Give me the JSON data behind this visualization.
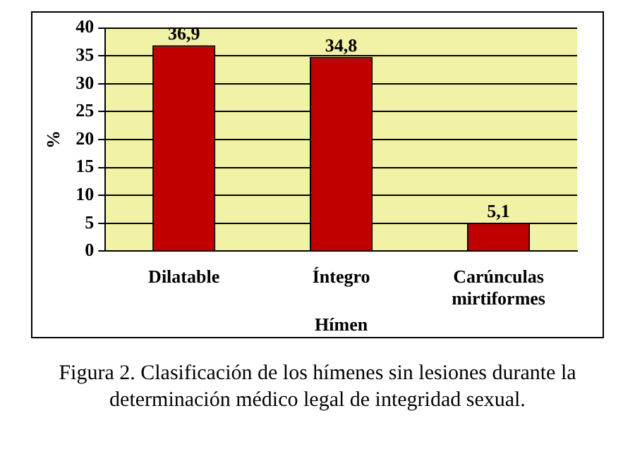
{
  "chart_data": {
    "type": "bar",
    "xlabel": "Hímen",
    "ylabel": "%",
    "categories": [
      "Dilatable",
      "Íntegro",
      "Carúnculas mirtiformes"
    ],
    "values": [
      36.9,
      34.8,
      5.1
    ],
    "color": "#c00000",
    "value_labels": [
      "36,9",
      "34,8",
      "5,1"
    ],
    "ylim": [
      0,
      40
    ],
    "yticks": [
      0,
      5,
      10,
      15,
      20,
      25,
      30,
      35,
      40
    ],
    "grid": "y",
    "annotations": [
      "Figura 2. Clasificación de los hímenes sin lesiones durante la determinación médico legal de integridad sexual."
    ]
  }
}
